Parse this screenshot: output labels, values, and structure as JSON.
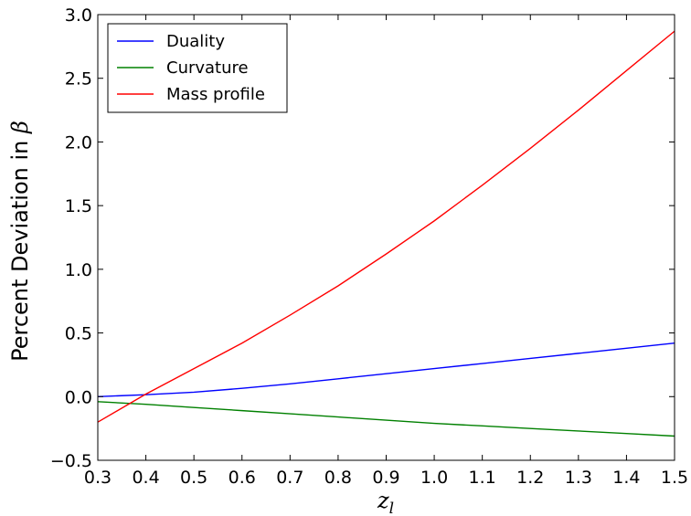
{
  "chart_data": {
    "type": "line",
    "xlabel": "z",
    "xlabel_sub": "l",
    "ylabel": "Percent Deviation in ",
    "ylabel_symbol": "β",
    "xlim": [
      0.3,
      1.5
    ],
    "ylim": [
      -0.5,
      3.0
    ],
    "xticks": [
      "0.3",
      "0.4",
      "0.5",
      "0.6",
      "0.7",
      "0.8",
      "0.9",
      "1.0",
      "1.1",
      "1.2",
      "1.3",
      "1.4",
      "1.5"
    ],
    "yticks": [
      "−0.5",
      "0.0",
      "0.5",
      "1.0",
      "1.5",
      "2.0",
      "2.5",
      "3.0"
    ],
    "grid": false,
    "legend_position": "top-left",
    "x": [
      0.3,
      0.4,
      0.5,
      0.6,
      0.7,
      0.8,
      0.9,
      1.0,
      1.1,
      1.2,
      1.3,
      1.4,
      1.5
    ],
    "series": [
      {
        "name": "Duality",
        "color": "#0000ff",
        "values": [
          0.0,
          0.015,
          0.035,
          0.065,
          0.1,
          0.14,
          0.18,
          0.22,
          0.26,
          0.3,
          0.34,
          0.38,
          0.42
        ]
      },
      {
        "name": "Curvature",
        "color": "#008000",
        "values": [
          -0.04,
          -0.06,
          -0.085,
          -0.11,
          -0.135,
          -0.16,
          -0.185,
          -0.21,
          -0.23,
          -0.25,
          -0.27,
          -0.29,
          -0.31
        ]
      },
      {
        "name": "Mass profile",
        "color": "#ff0000",
        "values": [
          -0.2,
          0.02,
          0.22,
          0.42,
          0.64,
          0.87,
          1.12,
          1.38,
          1.66,
          1.95,
          2.25,
          2.56,
          2.87
        ]
      }
    ]
  }
}
